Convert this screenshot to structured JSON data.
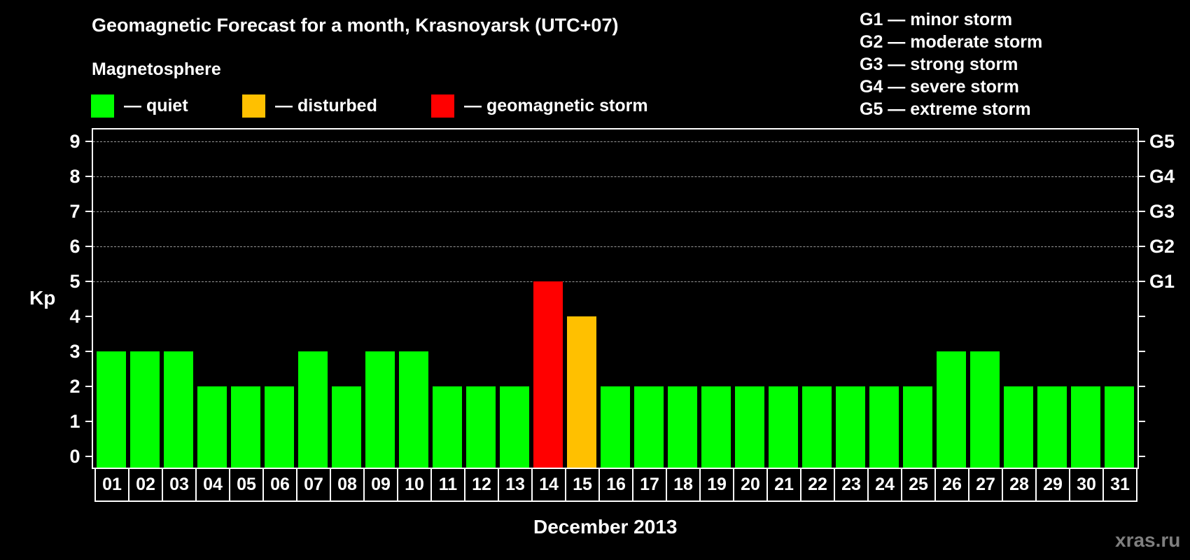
{
  "header": {
    "title": "Geomagnetic Forecast for a month, Krasnoyarsk (UTC+07)",
    "section_label": "Magnetosphere"
  },
  "legend": {
    "items": [
      {
        "label": "— quiet",
        "color": "#00FF00"
      },
      {
        "label": "— disturbed",
        "color": "#FFC000"
      },
      {
        "label": "— geomagnetic storm",
        "color": "#FF0000"
      }
    ]
  },
  "g_legend": [
    "G1 — minor storm",
    "G2 — moderate storm",
    "G3 — strong storm",
    "G4 — severe storm",
    "G5 — extreme storm"
  ],
  "axes": {
    "y_label": "Kp",
    "y_ticks": [
      "0",
      "1",
      "2",
      "3",
      "4",
      "5",
      "6",
      "7",
      "8",
      "9"
    ],
    "right_ticks": {
      "5": "G1",
      "6": "G2",
      "7": "G3",
      "8": "G4",
      "9": "G5"
    },
    "x_label": "December 2013"
  },
  "watermark": "xras.ru",
  "colors": {
    "quiet": "#00FF00",
    "disturbed": "#FFC000",
    "storm": "#FF0000",
    "grid": "#9A9A9A",
    "background": "#000000"
  },
  "chart_data": {
    "type": "bar",
    "title": "Geomagnetic Forecast for a month, Krasnoyarsk (UTC+07)",
    "subtitle": "Magnetosphere",
    "xlabel": "December 2013",
    "ylabel": "Kp",
    "ylim": [
      0,
      9
    ],
    "grid": "horizontal dashed at Kp 5-9",
    "legend_position": "top",
    "categories": [
      "01",
      "02",
      "03",
      "04",
      "05",
      "06",
      "07",
      "08",
      "09",
      "10",
      "11",
      "12",
      "13",
      "14",
      "15",
      "16",
      "17",
      "18",
      "19",
      "20",
      "21",
      "22",
      "23",
      "24",
      "25",
      "26",
      "27",
      "28",
      "29",
      "30",
      "31"
    ],
    "values": [
      3,
      3,
      3,
      2,
      2,
      2,
      3,
      2,
      3,
      3,
      2,
      2,
      2,
      5,
      4,
      2,
      2,
      2,
      2,
      2,
      2,
      2,
      2,
      2,
      2,
      3,
      3,
      2,
      2,
      2,
      2
    ],
    "status": [
      "quiet",
      "quiet",
      "quiet",
      "quiet",
      "quiet",
      "quiet",
      "quiet",
      "quiet",
      "quiet",
      "quiet",
      "quiet",
      "quiet",
      "quiet",
      "storm",
      "disturbed",
      "quiet",
      "quiet",
      "quiet",
      "quiet",
      "quiet",
      "quiet",
      "quiet",
      "quiet",
      "quiet",
      "quiet",
      "quiet",
      "quiet",
      "quiet",
      "quiet",
      "quiet",
      "quiet"
    ],
    "right_axis": {
      "5": "G1",
      "6": "G2",
      "7": "G3",
      "8": "G4",
      "9": "G5"
    },
    "legend": [
      "quiet",
      "disturbed",
      "geomagnetic storm"
    ]
  }
}
